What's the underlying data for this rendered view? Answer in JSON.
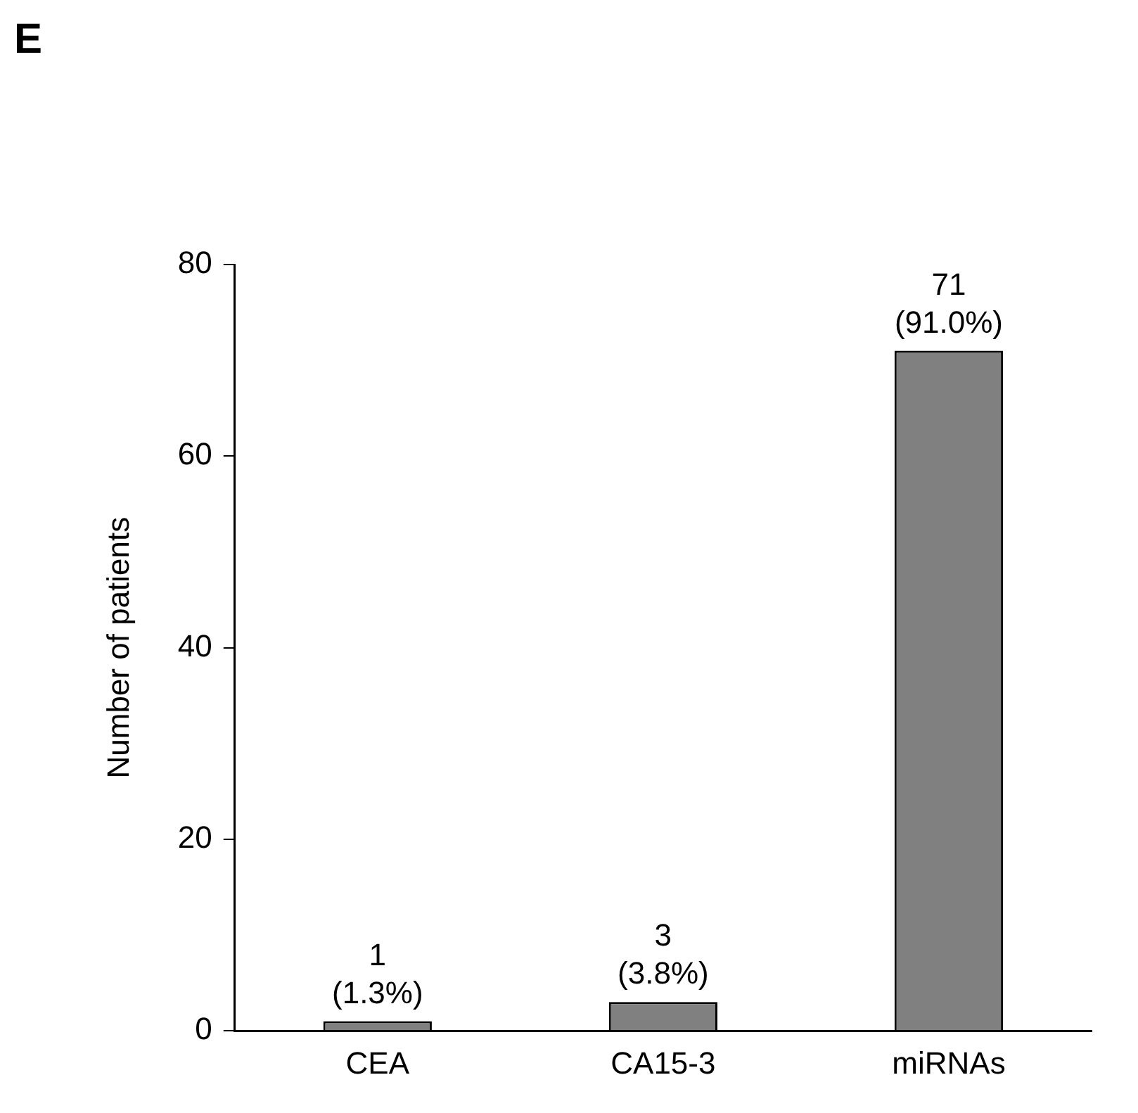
{
  "chart_data": {
    "type": "bar",
    "title": "E",
    "ylabel": "Number of patients",
    "categories": [
      "CEA",
      "CA15-3",
      "miRNAs"
    ],
    "values": [
      1,
      3,
      71
    ],
    "color": "#808080",
    "value_labels": [
      "1\n(1.3%)",
      "3\n(3.8%)",
      "71\n(91.0%)"
    ],
    "ylim": [
      0,
      80
    ],
    "yticks": [
      0,
      20,
      40,
      60,
      80
    ],
    "grid": false,
    "legend": false
  }
}
